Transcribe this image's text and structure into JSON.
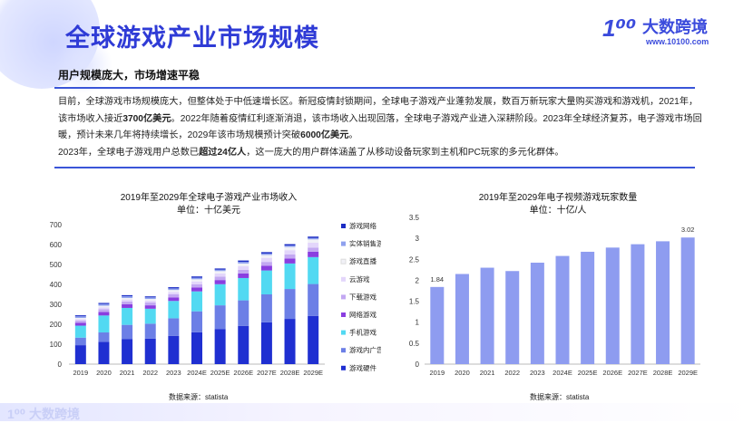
{
  "page": {
    "title": "全球游戏产业市场规模",
    "subtitle": "用户规模庞大，市场增速平稳",
    "logo_mark": "1⁰⁰",
    "logo_name": "大数跨境",
    "logo_url": "www.10100.com",
    "footer_logo_mark": "1⁰⁰",
    "footer_logo_name": "大数跨境",
    "para": {
      "p1a": "目前，全球游戏市场规模庞大，但整体处于中低速增长区。新冠疫情封锁期间，全球电子游戏产业蓬勃发展，数百万新玩家大量购买游戏和游戏机，2021年，该市场收入接近",
      "p1b": "3700亿美元",
      "p1c": "。2022年随着疫情红利逐渐消退，该市场收入出现回落，全球电子游戏产业进入深耕阶段。2023年全球经济复苏，电子游戏市场回暖，预计未来几年将持续增长，2029年该市场规模预计突破",
      "p1d": "6000亿美元",
      "p1e": "。",
      "p2a": "2023年，全球电子游戏用户总数已",
      "p2b": "超过24亿人",
      "p2c": "，这一庞大的用户群体涵盖了从移动设备玩家到主机和PC玩家的多元化群体。"
    }
  },
  "chart_data": [
    {
      "type": "bar",
      "stacked": true,
      "title": "2019年至2029年全球电子游戏产业市场收入",
      "subtitle": "单位：十亿美元",
      "source": "数据来源：statista",
      "categories": [
        "2019",
        "2020",
        "2021",
        "2022",
        "2023",
        "2024E",
        "2025E",
        "2026E",
        "2027E",
        "2028E",
        "2029E"
      ],
      "ylim": [
        0,
        700
      ],
      "yticks": [
        0,
        100,
        200,
        300,
        400,
        500,
        600,
        700
      ],
      "series": [
        {
          "name": "游戏硬件",
          "color": "#1f2fd1",
          "values": [
            95,
            112,
            125,
            128,
            142,
            160,
            175,
            192,
            210,
            227,
            242
          ]
        },
        {
          "name": "游戏内广告",
          "color": "#6c7fe6",
          "values": [
            38,
            47,
            72,
            75,
            88,
            105,
            120,
            128,
            140,
            150,
            160
          ]
        },
        {
          "name": "手机游戏",
          "color": "#52d9f2",
          "values": [
            60,
            85,
            85,
            75,
            87,
            100,
            106,
            112,
            120,
            128,
            135
          ]
        },
        {
          "name": "网络游戏",
          "color": "#8a3ee0",
          "values": [
            15,
            18,
            18,
            17,
            18,
            20,
            21,
            23,
            24,
            25,
            27
          ]
        },
        {
          "name": "下载游戏",
          "color": "#c3a8f2",
          "values": [
            10,
            13,
            14,
            14,
            15,
            16,
            17,
            18,
            19,
            20,
            21
          ]
        },
        {
          "name": "云游戏",
          "color": "#e3d6fb",
          "values": [
            8,
            10,
            10,
            10,
            12,
            14,
            16,
            18,
            20,
            22,
            24
          ]
        },
        {
          "name": "游戏直播",
          "color": "#f1f1f7",
          "values": [
            6,
            8,
            8,
            8,
            10,
            11,
            12,
            14,
            15,
            16,
            17
          ]
        },
        {
          "name": "实体销售游戏",
          "color": "#8fa1ee",
          "values": [
            8,
            9,
            9,
            8,
            8,
            8,
            7,
            8,
            7,
            7,
            7
          ]
        },
        {
          "name": "游戏网络",
          "color": "#1b2cc4",
          "values": [
            5,
            5,
            5,
            5,
            6,
            6,
            6,
            7,
            7,
            7,
            7
          ]
        }
      ],
      "legend_order": [
        "游戏网络",
        "实体销售游戏",
        "游戏直播",
        "云游戏",
        "下载游戏",
        "网络游戏",
        "手机游戏",
        "游戏内广告",
        "游戏硬件"
      ]
    },
    {
      "type": "bar",
      "title": "2019年至2029年电子视频游戏玩家数量",
      "subtitle": "单位：十亿/人",
      "source": "数据来源：statista",
      "categories": [
        "2019",
        "2020",
        "2021",
        "2022",
        "2023",
        "2024E",
        "2025E",
        "2026E",
        "2027E",
        "2028E",
        "2029E"
      ],
      "values": [
        1.84,
        2.15,
        2.3,
        2.22,
        2.42,
        2.58,
        2.68,
        2.78,
        2.86,
        2.93,
        3.02
      ],
      "labels": {
        "first": "1.84",
        "last": "3.02"
      },
      "color": "#8e9cf0",
      "ylim": [
        0,
        3.5
      ],
      "yticks": [
        "0",
        "0.5",
        "1",
        "1.5",
        "2",
        "2.5",
        "3",
        "3.5"
      ]
    }
  ]
}
